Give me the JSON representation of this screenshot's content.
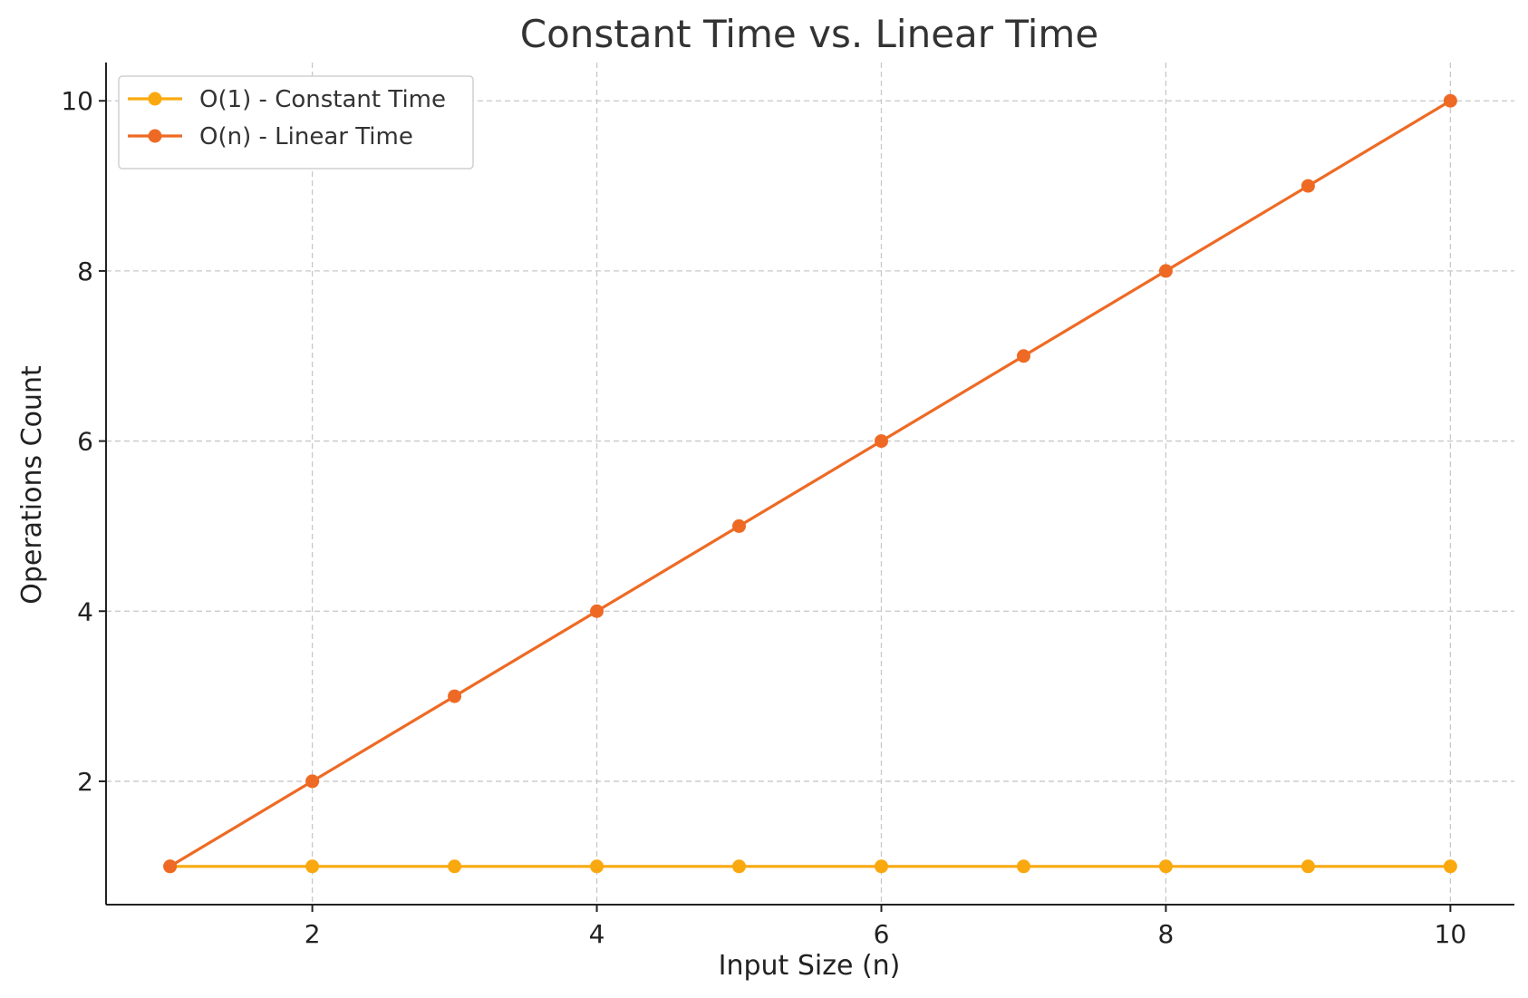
{
  "chart_data": {
    "type": "line",
    "title": "Constant Time vs. Linear Time",
    "xlabel": "Input Size (n)",
    "ylabel": "Operations Count",
    "x": [
      1,
      2,
      3,
      4,
      5,
      6,
      7,
      8,
      9,
      10
    ],
    "xlim": [
      0.55,
      10.45
    ],
    "ylim": [
      0.55,
      10.45
    ],
    "xticks": [
      2,
      4,
      6,
      8,
      10
    ],
    "yticks": [
      2,
      4,
      6,
      8,
      10
    ],
    "grid": true,
    "legend_position": "top-left",
    "series": [
      {
        "name": "O(1) - Constant Time",
        "color": "#f9a90f",
        "values": [
          1,
          1,
          1,
          1,
          1,
          1,
          1,
          1,
          1,
          1
        ]
      },
      {
        "name": "O(n) - Linear Time",
        "color": "#ee6a24",
        "values": [
          1,
          2,
          3,
          4,
          5,
          6,
          7,
          8,
          9,
          10
        ]
      }
    ]
  }
}
